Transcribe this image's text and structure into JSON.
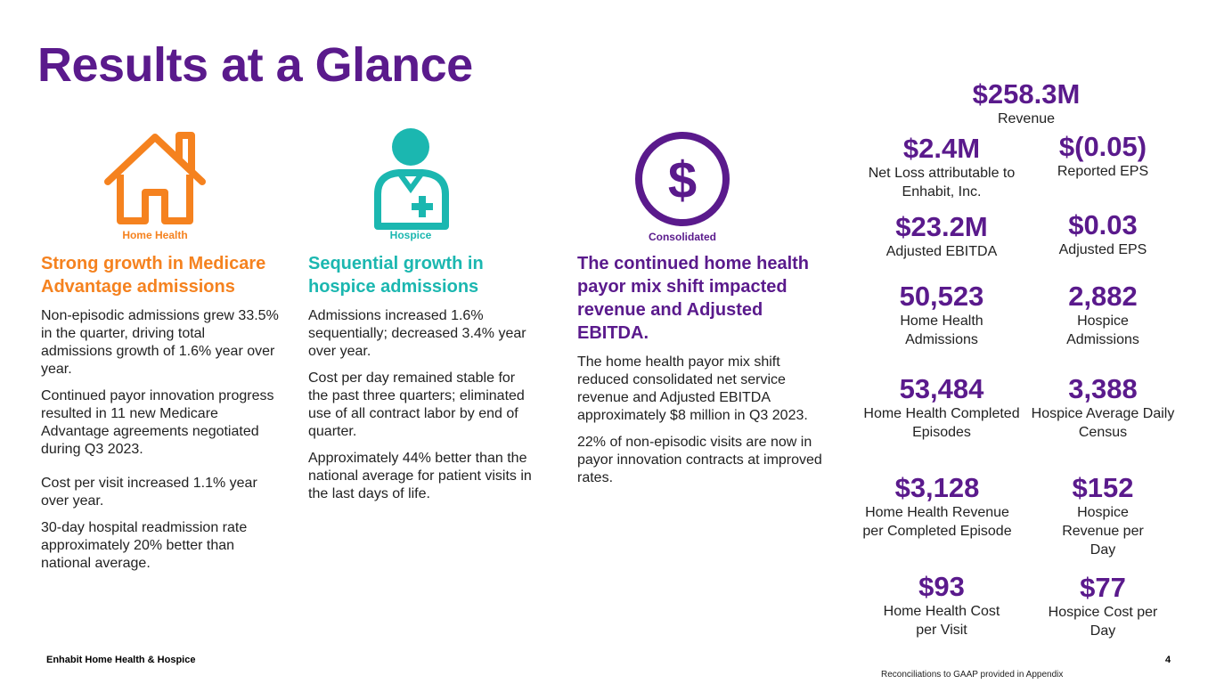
{
  "title": "Results at a Glance",
  "colors": {
    "orange": "#f5821f",
    "teal": "#1bb7b0",
    "purple": "#5a1a8c"
  },
  "icons": {
    "home": {
      "name": "house-icon",
      "label": "Home Health"
    },
    "hospice": {
      "name": "nurse-icon",
      "label": "Hospice"
    },
    "consolidated": {
      "name": "dollar-icon",
      "label": "Consolidated"
    }
  },
  "columns": {
    "home": {
      "heading": "Strong growth in Medicare Advantage admissions",
      "paragraphs": [
        "Non-episodic admissions grew 33.5% in the quarter, driving total admissions growth of 1.6% year over year.",
        "Continued payor innovation progress resulted in 11 new Medicare Advantage agreements negotiated during Q3 2023.",
        "Cost per visit increased 1.1% year over year.",
        "30-day hospital readmission rate approximately 20% better than national average."
      ]
    },
    "hospice": {
      "heading": "Sequential growth in hospice admissions",
      "paragraphs": [
        "Admissions increased 1.6% sequentially; decreased 3.4% year over year.",
        "Cost per day remained stable for the past three quarters; eliminated use of all contract labor by end of quarter.",
        "Approximately 44% better than the national average for patient visits in the last days of life."
      ]
    },
    "consolidated": {
      "heading": "The continued home health payor mix shift impacted revenue and Adjusted EBITDA.",
      "paragraphs": [
        "The home health payor mix shift reduced consolidated net service revenue and Adjusted EBITDA approximately $8 million in Q3 2023.",
        "22% of non-episodic visits are now in payor innovation contracts at improved rates."
      ]
    }
  },
  "metrics": {
    "revenue": {
      "value": "$258.3M",
      "label": "Revenue"
    },
    "net_loss": {
      "value": "$2.4M",
      "label": "Net Loss attributable to Enhabit, Inc."
    },
    "eps": {
      "value": "$(0.05)",
      "label": "Reported EPS"
    },
    "ebitda": {
      "value": "$23.2M",
      "label": "Adjusted EBITDA"
    },
    "adj_eps": {
      "value": "$0.03",
      "label": "Adjusted EPS"
    },
    "hh_adm": {
      "value": "50,523",
      "label": "Home Health Admissions"
    },
    "hos_adm": {
      "value": "2,882",
      "label": "Hospice Admissions"
    },
    "hh_eps": {
      "value": "53,484",
      "label": "Home Health Completed Episodes"
    },
    "hos_adc": {
      "value": "3,388",
      "label": "Hospice Average Daily Census"
    },
    "hh_rev": {
      "value": "$3,128",
      "label": "Home Health Revenue per Completed Episode"
    },
    "hos_rev": {
      "value": "$152",
      "label": "Hospice Revenue per Day"
    },
    "hh_cost": {
      "value": "$93",
      "label": "Home Health Cost per Visit"
    },
    "hos_cost": {
      "value": "$77",
      "label": "Hospice Cost per Day"
    }
  },
  "footer": {
    "company": "Enhabit Home Health & Hospice",
    "page_number": "4",
    "note": "Reconciliations to GAAP provided in Appendix"
  }
}
